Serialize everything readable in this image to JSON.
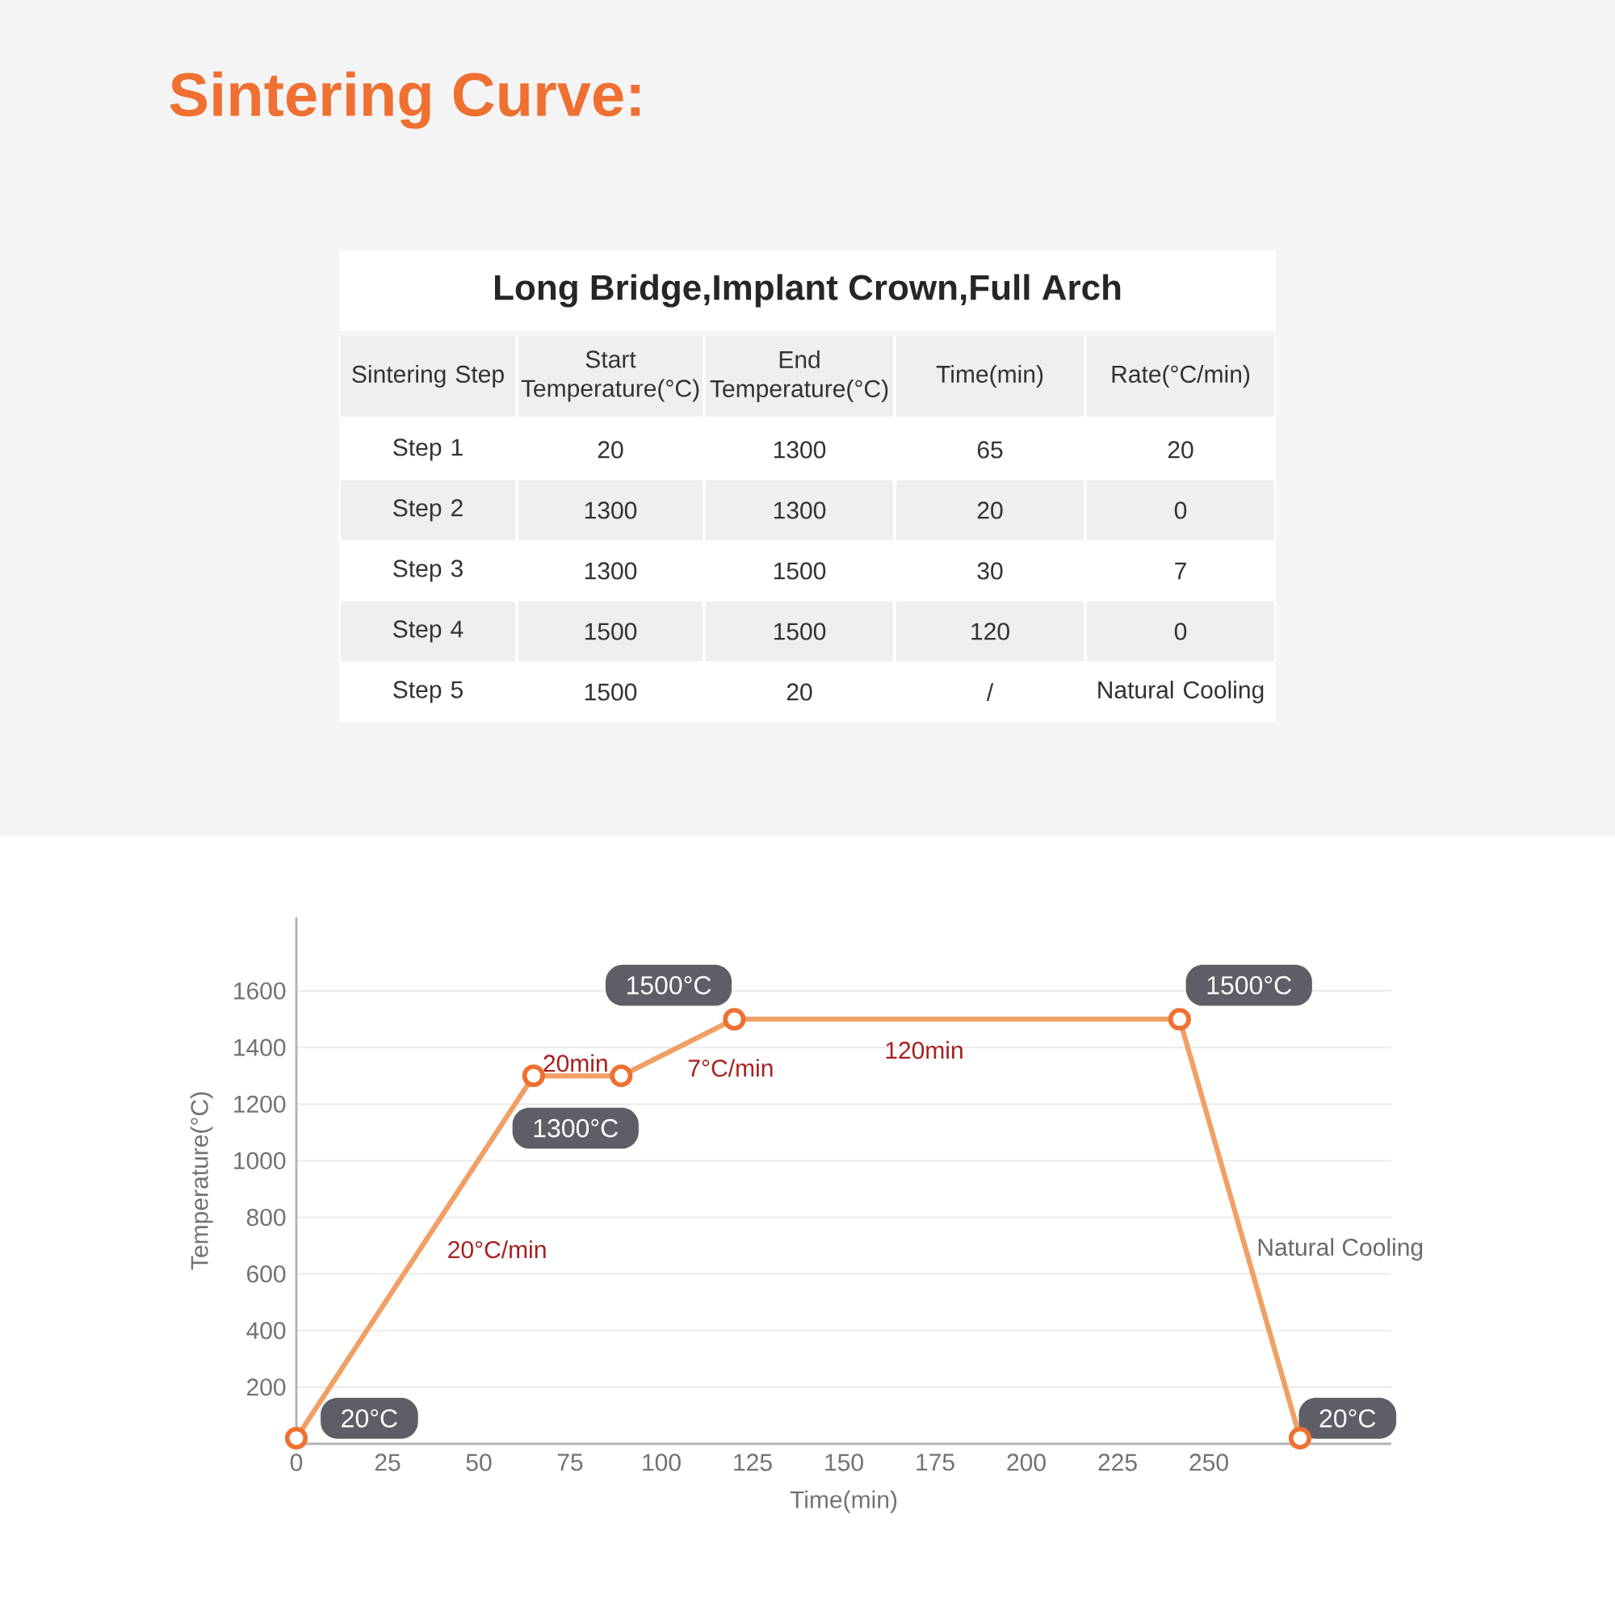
{
  "chart_data": [
    {
      "type": "other",
      "title": "Sintering Curve:",
      "subtitle": "Long Bridge,Implant Crown,Full Arch",
      "categories": [
        "Sintering Step",
        "Start Temperature(°C)",
        "End Temperature(°C)",
        "Time(min)",
        "Rate(°C/min)"
      ],
      "y_categories": [
        "Step 1",
        "Step 2",
        "Step 3",
        "Step 4",
        "Step 5"
      ],
      "cell_labels": [
        [
          "20",
          "1300",
          "65",
          "20"
        ],
        [
          "1300",
          "1300",
          "20",
          "0"
        ],
        [
          "1300",
          "1500",
          "30",
          "7"
        ],
        [
          "1500",
          "1500",
          "120",
          "0"
        ],
        [
          "1500",
          "20",
          "/",
          "Natural Cooling"
        ]
      ]
    },
    {
      "type": "line",
      "xlabel": "Time(min)",
      "ylabel": "Temperature(°C)",
      "x": [
        0,
        65,
        89,
        120,
        242,
        275
      ],
      "series": [
        {
          "color": "#f0a064",
          "values": [
            20,
            1300,
            1300,
            1500,
            1500,
            20
          ]
        }
      ],
      "xlim": [
        0,
        300
      ],
      "ylim": [
        0,
        1860
      ],
      "xticks": [
        0,
        25,
        50,
        75,
        100,
        125,
        150,
        175,
        200,
        225,
        250
      ],
      "yticks": [
        200,
        400,
        600,
        800,
        1000,
        1200,
        1400,
        1600
      ],
      "grid": "y",
      "marker": "circle",
      "line_style": "solid",
      "annotations": [
        "20°C",
        "1300°C",
        "1500°C",
        "1500°C",
        "20°C",
        "20°C/min",
        "20min",
        "7°C/min",
        "120min",
        "Natural Cooling"
      ]
    }
  ]
}
